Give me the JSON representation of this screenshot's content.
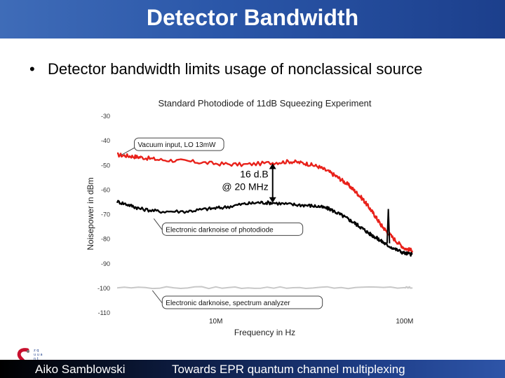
{
  "slide": {
    "title": "Detector Bandwidth",
    "bullet": "Detector bandwidth limits usage of nonclassical source",
    "bullet_symbol": "•"
  },
  "footer": {
    "author": "Aiko Samblowski",
    "talk_title": "Towards EPR quantum channel multiplexing"
  },
  "colors": {
    "accent": "#2a56a8",
    "vacuum": "#e8211a",
    "darknoise": "#000000",
    "analyzer": "#c8c8c8"
  },
  "chart_data": {
    "type": "line",
    "title": "Standard Photodiode of 11dB Squeezing Experiment",
    "xlabel": "Frequency in Hz",
    "ylabel": "Noisepower in dBm",
    "x_scale": "log",
    "xlim": [
      3000000,
      110000000
    ],
    "ylim": [
      -110,
      -30
    ],
    "yticks": [
      -30,
      -40,
      -50,
      -60,
      -70,
      -80,
      -90,
      -100,
      -110
    ],
    "xticks": [
      {
        "value": 10000000,
        "label": "10M"
      },
      {
        "value": 100000000,
        "label": "100M"
      }
    ],
    "series": [
      {
        "name": "Vacuum input, LO 13mW",
        "color": "#e8211a",
        "x": [
          3000000,
          3500000,
          4000000,
          5000000,
          7000000,
          10000000,
          14000000,
          20000000,
          25000000,
          30000000,
          35000000,
          40000000,
          45000000,
          50000000,
          55000000,
          60000000,
          65000000,
          70000000,
          75000000,
          80000000,
          90000000,
          100000000,
          110000000
        ],
        "y": [
          -46,
          -46.5,
          -47,
          -48,
          -48.6,
          -49.6,
          -50,
          -49.2,
          -48.7,
          -49.5,
          -50.8,
          -53,
          -55.5,
          -58,
          -61,
          -64,
          -67.5,
          -71,
          -74.5,
          -77,
          -81,
          -84,
          -85
        ]
      },
      {
        "name": "Electronic darknoise of photodiode",
        "color": "#000000",
        "x": [
          3000000,
          3500000,
          4000000,
          5000000,
          7000000,
          9000000,
          11000000,
          14000000,
          17000000,
          20000000,
          25000000,
          30000000,
          35000000,
          40000000,
          45000000,
          50000000,
          55000000,
          60000000,
          65000000,
          70000000,
          75000000,
          80000000,
          90000000,
          100000000,
          110000000
        ],
        "y": [
          -65,
          -66.5,
          -68,
          -69,
          -69,
          -68,
          -67.4,
          -66,
          -65.4,
          -65.5,
          -66.2,
          -66.5,
          -67,
          -68,
          -70,
          -72,
          -74,
          -76,
          -78,
          -79.5,
          -81,
          -82.5,
          -84.5,
          -86,
          -86.5
        ]
      },
      {
        "name": "Electronic darknoise, spectrum analyzer",
        "color": "#c8c8c8",
        "x": [
          3000000,
          10000000,
          30000000,
          100000000,
          110000000
        ],
        "y": [
          -100,
          -100,
          -100,
          -100,
          -100
        ]
      }
    ],
    "spike": {
      "x": 82000000,
      "y_base": -82,
      "y_peak": -68
    },
    "annotations": [
      {
        "text": "Vacuum input, LO 13mW",
        "x": 3700000,
        "y": -42
      },
      {
        "text": "Electronic darknoise of photodiode",
        "x": 5200000,
        "y": -76.5
      },
      {
        "text": "Electronic darknoise, spectrum analyzer",
        "x": 5200000,
        "y": -106.3
      }
    ],
    "arrow_label": [
      "16 d.B",
      "@ 20 MHz"
    ],
    "arrow": {
      "x": 20000000,
      "y_top": -49.5,
      "y_bottom": -65.5
    }
  }
}
